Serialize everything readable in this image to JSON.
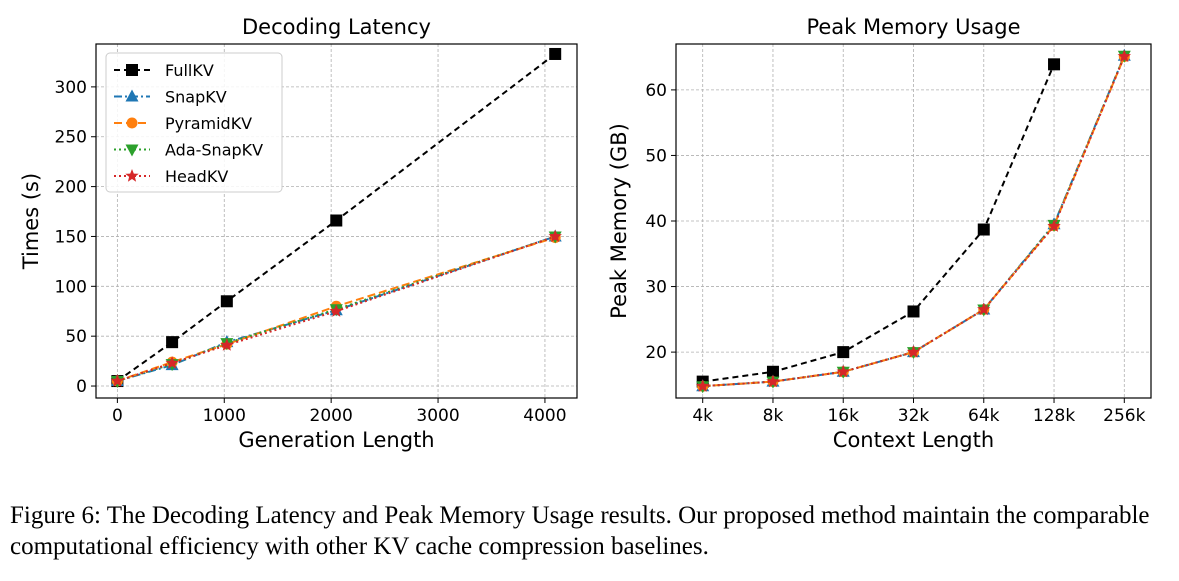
{
  "chart_data": [
    {
      "type": "line",
      "title": "Decoding Latency",
      "xlabel": "Generation Length",
      "ylabel": "Times (s)",
      "xlim": [
        -200,
        4300
      ],
      "ylim": [
        -12,
        343
      ],
      "xticks": [
        0,
        1000,
        2000,
        3000,
        4000
      ],
      "yticks": [
        0,
        50,
        100,
        150,
        200,
        250,
        300
      ],
      "grid": true,
      "legend_position": "upper-left",
      "series": [
        {
          "name": "FullKV",
          "color": "#000000",
          "marker": "square",
          "dash": "6,4",
          "x": [
            0,
            512,
            1024,
            2048,
            4096
          ],
          "y": [
            5,
            44,
            85,
            166,
            333
          ]
        },
        {
          "name": "SnapKV",
          "color": "#1f77b4",
          "marker": "triangle-up",
          "dash": "8,3,2,3",
          "x": [
            0,
            512,
            1024,
            2048,
            4096
          ],
          "y": [
            5,
            21,
            44,
            76,
            150
          ]
        },
        {
          "name": "PyramidKV",
          "color": "#ff7f0e",
          "marker": "circle",
          "dash": "8,4",
          "x": [
            0,
            512,
            1024,
            2048,
            4096
          ],
          "y": [
            5,
            24,
            42,
            80,
            149
          ]
        },
        {
          "name": "Ada-SnapKV",
          "color": "#2ca02c",
          "marker": "triangle-down",
          "dash": "2,3",
          "x": [
            0,
            512,
            1024,
            2048,
            4096
          ],
          "y": [
            5,
            22,
            43,
            77,
            150
          ]
        },
        {
          "name": "HeadKV",
          "color": "#d62728",
          "marker": "star",
          "dash": "2,3",
          "x": [
            0,
            512,
            1024,
            2048,
            4096
          ],
          "y": [
            5,
            23,
            41,
            75,
            150
          ]
        }
      ]
    },
    {
      "type": "line",
      "title": "Peak Memory Usage",
      "xlabel": "Context Length",
      "ylabel": "Peak Memory (GB)",
      "categories": [
        "4k",
        "8k",
        "16k",
        "32k",
        "64k",
        "128k",
        "256k"
      ],
      "ylim": [
        13,
        67
      ],
      "yticks": [
        20,
        30,
        40,
        50,
        60
      ],
      "grid": true,
      "series": [
        {
          "name": "FullKV",
          "color": "#000000",
          "marker": "square",
          "dash": "6,4",
          "values": [
            15.5,
            17.0,
            20.0,
            26.2,
            38.7,
            63.9,
            null
          ]
        },
        {
          "name": "SnapKV",
          "color": "#1f77b4",
          "marker": "triangle-up",
          "dash": "8,3,2,3",
          "values": [
            14.8,
            15.5,
            17.0,
            20.0,
            26.5,
            39.5,
            65.2
          ]
        },
        {
          "name": "PyramidKV",
          "color": "#ff7f0e",
          "marker": "circle",
          "dash": "8,4",
          "values": [
            14.8,
            15.5,
            17.0,
            20.0,
            26.5,
            39.3,
            65.1
          ]
        },
        {
          "name": "Ada-SnapKV",
          "color": "#2ca02c",
          "marker": "triangle-down",
          "dash": "2,3",
          "values": [
            14.8,
            15.5,
            17.0,
            20.0,
            26.5,
            39.4,
            65.2
          ]
        },
        {
          "name": "HeadKV",
          "color": "#d62728",
          "marker": "star",
          "dash": "2,3",
          "values": [
            14.8,
            15.5,
            17.0,
            20.0,
            26.5,
            39.2,
            65.1
          ]
        }
      ]
    }
  ],
  "caption": "Figure 6: The Decoding Latency and Peak Memory Usage results. Our proposed method maintain the comparable computational efficiency with other KV cache compression baselines."
}
